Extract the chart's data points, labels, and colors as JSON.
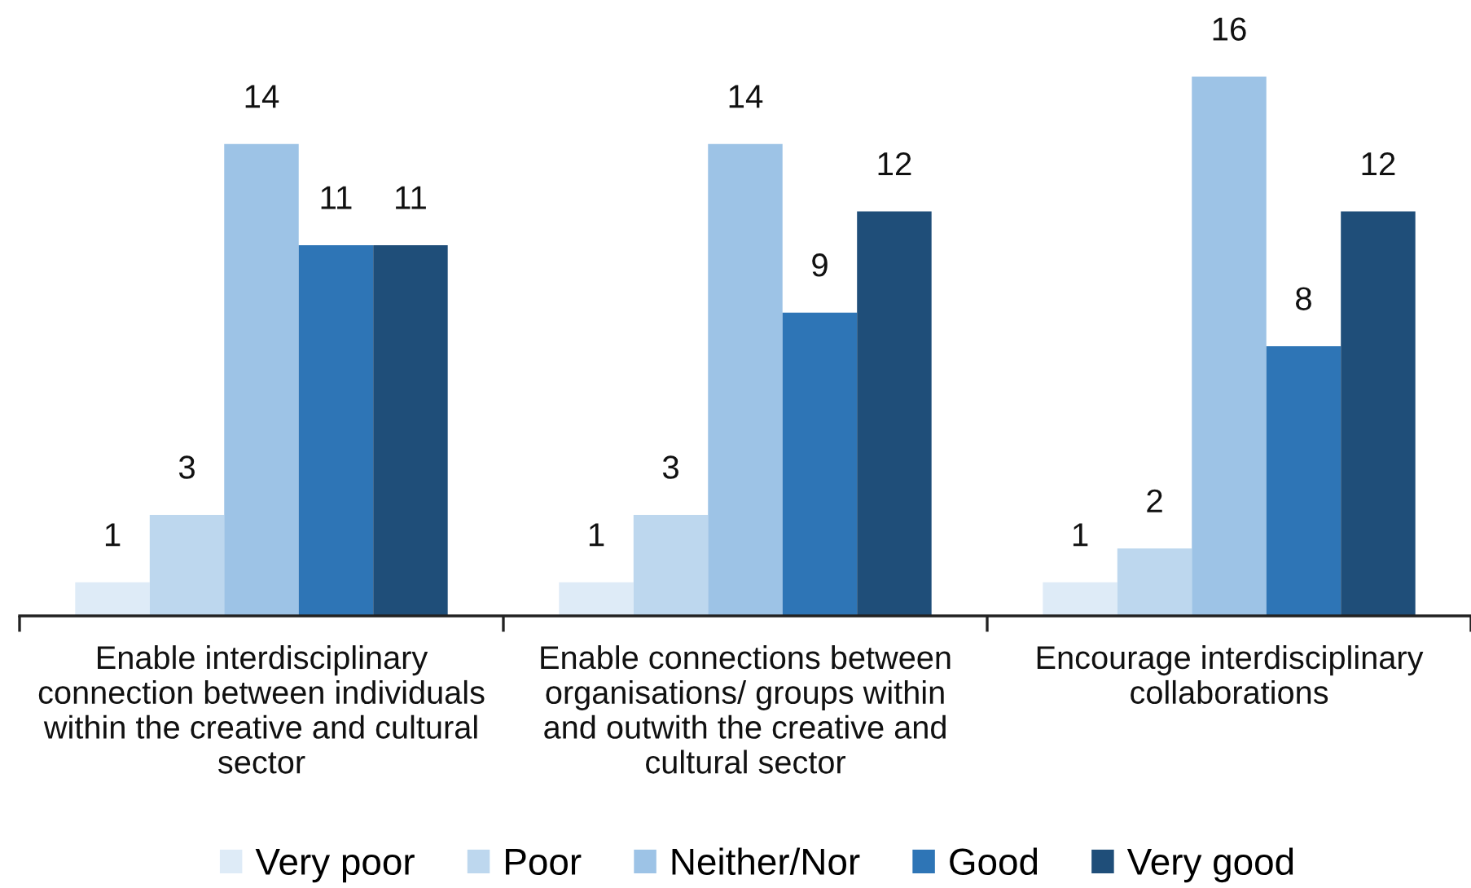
{
  "chart_data": {
    "type": "bar",
    "categories": [
      "Enable interdisciplinary connection between individuals within the creative and cultural sector",
      "Enable connections between organisations/ groups within and outwith the creative and cultural sector",
      "Encourage interdisciplinary collaborations"
    ],
    "series": [
      {
        "name": "Very poor",
        "color": "#deebf7",
        "values": [
          1,
          1,
          1
        ]
      },
      {
        "name": "Poor",
        "color": "#bdd7ee",
        "values": [
          3,
          3,
          2
        ]
      },
      {
        "name": "Neither/Nor",
        "color": "#9dc3e6",
        "values": [
          14,
          14,
          16
        ]
      },
      {
        "name": "Good",
        "color": "#2e75b6",
        "values": [
          11,
          9,
          8
        ]
      },
      {
        "name": "Very good",
        "color": "#1f4e79",
        "values": [
          11,
          12,
          12
        ]
      }
    ],
    "data_labels": true,
    "legend": "bottom",
    "grid": false,
    "tick_labels": "x"
  }
}
